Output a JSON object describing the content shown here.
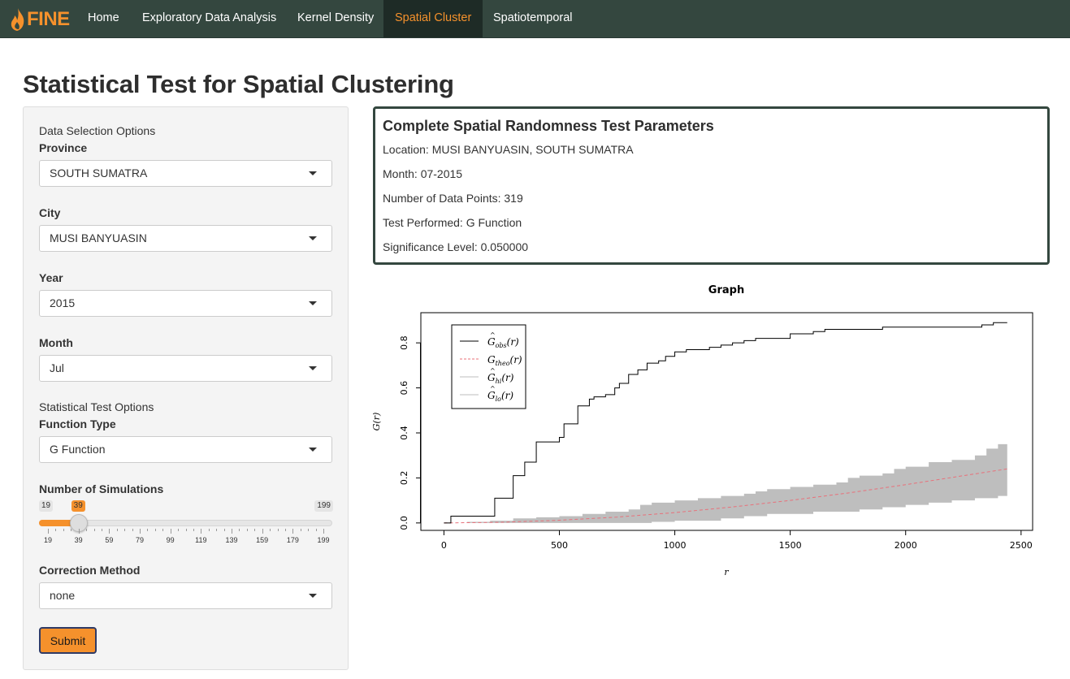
{
  "app": {
    "brand": "FINE"
  },
  "nav": {
    "items": [
      {
        "label": "Home"
      },
      {
        "label": "Exploratory Data Analysis"
      },
      {
        "label": "Kernel Density"
      },
      {
        "label": "Spatial Cluster"
      },
      {
        "label": "Spatiotemporal"
      }
    ],
    "active": "Spatial Cluster"
  },
  "page": {
    "title": "Statistical Test for Spatial Clustering"
  },
  "sidebar": {
    "data_section": "Data Selection Options",
    "province": {
      "label": "Province",
      "value": "SOUTH SUMATRA"
    },
    "city": {
      "label": "City",
      "value": "MUSI BANYUASIN"
    },
    "year": {
      "label": "Year",
      "value": "2015"
    },
    "month": {
      "label": "Month",
      "value": "Jul"
    },
    "test_section": "Statistical Test Options",
    "function_type": {
      "label": "Function Type",
      "value": "G Function"
    },
    "simulations": {
      "label": "Number of Simulations",
      "min": 19,
      "max": 199,
      "value": 39,
      "min_label": "19",
      "max_label": "199",
      "value_label": "39",
      "tick_labels": [
        "19",
        "39",
        "59",
        "79",
        "99",
        "119",
        "139",
        "159",
        "179",
        "199"
      ]
    },
    "correction": {
      "label": "Correction Method",
      "value": "none"
    },
    "submit_label": "Submit"
  },
  "params": {
    "title": "Complete Spatial Randomness Test Parameters",
    "location": "Location: MUSI BANYUASIN, SOUTH SUMATRA",
    "month": "Month: 07-2015",
    "points": "Number of Data Points: 319",
    "test": "Test Performed: G Function",
    "significance": "Significance Level: 0.050000"
  },
  "colors": {
    "accent": "#f5912c",
    "navbar": "#34473f",
    "nav_active_bg": "#1e2b26",
    "envelope": "#bebebe",
    "theo": "#e8707a"
  },
  "chart_data": {
    "type": "line",
    "title": "Graph",
    "xlabel": "r",
    "ylabel": "G(r)",
    "xlim": [
      0,
      2450
    ],
    "ylim": [
      0,
      0.9
    ],
    "xticks": [
      0,
      500,
      1000,
      1500,
      2000,
      2500
    ],
    "yticks": [
      0.0,
      0.2,
      0.4,
      0.6,
      0.8
    ],
    "ytick_labels": [
      "0.0",
      "0.2",
      "0.4",
      "0.6",
      "0.8"
    ],
    "legend": {
      "placement": "top-left",
      "entries": [
        {
          "base": "G",
          "sub": "obs",
          "hat": true,
          "style": "solid",
          "color": "#000000"
        },
        {
          "base": "G",
          "sub": "theo",
          "hat": false,
          "style": "dashed",
          "color": "#e8707a"
        },
        {
          "base": "G",
          "sub": "hi",
          "hat": true,
          "style": "solid",
          "color": "#bebebe"
        },
        {
          "base": "G",
          "sub": "lo",
          "hat": true,
          "style": "solid",
          "color": "#bebebe"
        }
      ]
    },
    "series": [
      {
        "key": "obs",
        "step": true,
        "x": [
          0,
          30,
          130,
          150,
          220,
          250,
          300,
          320,
          350,
          400,
          420,
          460,
          500,
          520,
          540,
          580,
          620,
          630,
          650,
          700,
          720,
          740,
          760,
          800,
          840,
          880,
          930,
          960,
          1000,
          1050,
          1100,
          1150,
          1180,
          1200,
          1250,
          1300,
          1320,
          1350,
          1400,
          1500,
          1520,
          1600,
          1650,
          1680,
          1700,
          1750,
          1800,
          1850,
          1900,
          1950,
          2000,
          2050,
          2100,
          2150,
          2200,
          2250,
          2300,
          2330,
          2380,
          2440
        ],
        "values": [
          0,
          0.03,
          0.03,
          0.03,
          0.11,
          0.11,
          0.21,
          0.21,
          0.27,
          0.36,
          0.36,
          0.36,
          0.38,
          0.44,
          0.44,
          0.52,
          0.52,
          0.55,
          0.56,
          0.57,
          0.57,
          0.6,
          0.62,
          0.66,
          0.68,
          0.71,
          0.72,
          0.74,
          0.76,
          0.77,
          0.77,
          0.78,
          0.78,
          0.79,
          0.8,
          0.81,
          0.81,
          0.82,
          0.82,
          0.84,
          0.84,
          0.85,
          0.86,
          0.86,
          0.86,
          0.86,
          0.86,
          0.86,
          0.87,
          0.87,
          0.87,
          0.87,
          0.87,
          0.87,
          0.87,
          0.87,
          0.87,
          0.88,
          0.89,
          0.89
        ]
      },
      {
        "key": "theo",
        "x": [
          0,
          250,
          500,
          750,
          1000,
          1250,
          1500,
          1750,
          2000,
          2250,
          2440
        ],
        "values": [
          0,
          0.003,
          0.012,
          0.026,
          0.046,
          0.071,
          0.1,
          0.133,
          0.17,
          0.21,
          0.24
        ]
      },
      {
        "key": "hi",
        "x": [
          0,
          100,
          200,
          300,
          400,
          500,
          600,
          700,
          800,
          850,
          900,
          1000,
          1100,
          1200,
          1300,
          1350,
          1400,
          1500,
          1600,
          1700,
          1750,
          1800,
          1900,
          1950,
          2000,
          2100,
          2200,
          2300,
          2350,
          2400,
          2440
        ],
        "values": [
          0,
          0.005,
          0.01,
          0.02,
          0.025,
          0.03,
          0.04,
          0.05,
          0.06,
          0.08,
          0.09,
          0.1,
          0.11,
          0.12,
          0.13,
          0.14,
          0.15,
          0.16,
          0.17,
          0.18,
          0.2,
          0.21,
          0.22,
          0.24,
          0.25,
          0.27,
          0.28,
          0.3,
          0.33,
          0.35,
          0.35
        ]
      },
      {
        "key": "lo",
        "x": [
          0,
          500,
          600,
          700,
          800,
          900,
          1000,
          1100,
          1200,
          1300,
          1400,
          1500,
          1600,
          1700,
          1800,
          1900,
          2000,
          2100,
          2200,
          2300,
          2400,
          2440
        ],
        "values": [
          0,
          0,
          0,
          0,
          0,
          0.005,
          0.01,
          0.01,
          0.02,
          0.03,
          0.04,
          0.04,
          0.05,
          0.05,
          0.06,
          0.07,
          0.08,
          0.09,
          0.1,
          0.11,
          0.12,
          0.12
        ]
      }
    ]
  }
}
